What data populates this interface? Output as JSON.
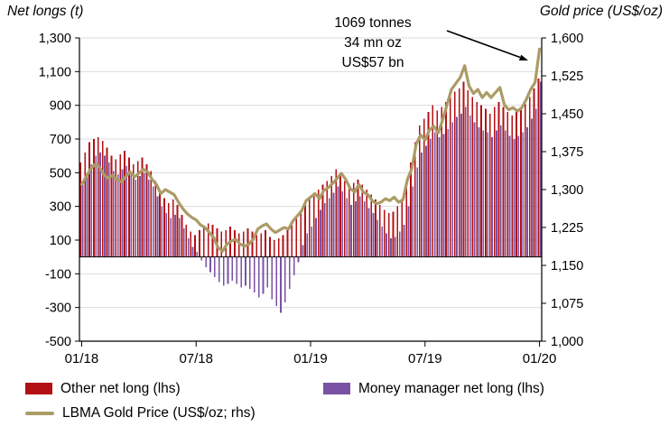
{
  "titles": {
    "left_axis_title": "Net longs (t)",
    "right_axis_title": "Gold price (US$/oz)"
  },
  "annotation": {
    "line1": "1069 tonnes",
    "line2": "34 mn oz",
    "line3": "US$57 bn"
  },
  "legend": [
    {
      "label": "Other net long (lhs)",
      "type": "bar",
      "color": "#b21015"
    },
    {
      "label": "Money manager net long (lhs)",
      "type": "bar",
      "color": "#7a52a3"
    },
    {
      "label": "LBMA Gold Price (US$/oz; rhs)",
      "type": "line",
      "color": "#ab9b66"
    }
  ],
  "chart_data": {
    "type": "bar",
    "subtype": "grouped bars with overlaid line, dual axis, weekly data 01/18 to 01/20",
    "x_tick_labels": [
      "01/18",
      "07/18",
      "01/19",
      "07/19",
      "01/20"
    ],
    "x_tick_indices": [
      0,
      26,
      52,
      78,
      104
    ],
    "left_axis": {
      "title": "Net longs (t)",
      "min": -500,
      "max": 1300,
      "tick_step": 200,
      "ticks": [
        1300,
        1100,
        900,
        700,
        500,
        300,
        100,
        -100,
        -300,
        -500
      ],
      "tick_labels": [
        "1,300",
        "1,100",
        "900",
        "700",
        "500",
        "300",
        "100",
        "-100",
        "-300",
        "-500"
      ]
    },
    "right_axis": {
      "title": "Gold price (US$/oz)",
      "min": 1000,
      "max": 1600,
      "tick_step": 75,
      "ticks": [
        1600,
        1525,
        1450,
        1375,
        1300,
        1225,
        1150,
        1075,
        1000
      ],
      "tick_labels": [
        "1,600",
        "1,525",
        "1,450",
        "1,375",
        "1,300",
        "1,225",
        "1,150",
        "1,075",
        "1,000"
      ]
    },
    "grid": true,
    "legend_position": "bottom",
    "series": [
      {
        "name": "Other net long (lhs)",
        "type": "bar",
        "axis": "left",
        "color": "#b21015",
        "values": [
          560,
          620,
          680,
          700,
          710,
          690,
          650,
          600,
          580,
          610,
          630,
          590,
          550,
          570,
          590,
          550,
          510,
          450,
          390,
          350,
          320,
          340,
          310,
          250,
          190,
          150,
          130,
          160,
          180,
          200,
          190,
          170,
          150,
          160,
          180,
          160,
          140,
          150,
          170,
          150,
          130,
          140,
          160,
          120,
          100,
          110,
          130,
          160,
          200,
          240,
          280,
          320,
          350,
          380,
          400,
          430,
          450,
          480,
          520,
          490,
          450,
          420,
          440,
          460,
          430,
          400,
          370,
          340,
          310,
          280,
          260,
          270,
          300,
          330,
          450,
          560,
          680,
          780,
          820,
          860,
          900,
          870,
          890,
          920,
          950,
          980,
          1000,
          1040,
          990,
          950,
          920,
          900,
          880,
          850,
          890,
          920,
          890,
          860,
          840,
          860,
          880,
          910,
          950,
          1000,
          1060
        ]
      },
      {
        "name": "Money manager net long (lhs)",
        "type": "bar",
        "axis": "left",
        "color": "#7a52a3",
        "values": [
          430,
          490,
          550,
          600,
          620,
          600,
          560,
          510,
          490,
          520,
          540,
          500,
          460,
          480,
          500,
          460,
          420,
          360,
          300,
          260,
          230,
          250,
          230,
          170,
          110,
          60,
          30,
          -20,
          -60,
          -90,
          -120,
          -150,
          -170,
          -160,
          -140,
          -160,
          -180,
          -170,
          -190,
          -210,
          -240,
          -220,
          -180,
          -250,
          -290,
          -330,
          -270,
          -190,
          -110,
          -30,
          70,
          140,
          180,
          230,
          280,
          320,
          350,
          380,
          420,
          390,
          350,
          310,
          330,
          360,
          330,
          290,
          260,
          220,
          180,
          140,
          110,
          120,
          150,
          190,
          300,
          420,
          530,
          620,
          660,
          700,
          740,
          710,
          730,
          760,
          800,
          830,
          850,
          890,
          840,
          800,
          770,
          750,
          740,
          710,
          750,
          780,
          750,
          720,
          700,
          720,
          740,
          770,
          820,
          880,
          1040
        ]
      },
      {
        "name": "LBMA Gold Price (US$/oz; rhs)",
        "type": "line",
        "axis": "right",
        "color": "#ab9b66",
        "values": [
          1310,
          1325,
          1340,
          1350,
          1345,
          1330,
          1322,
          1328,
          1320,
          1315,
          1325,
          1335,
          1325,
          1332,
          1340,
          1335,
          1320,
          1310,
          1292,
          1300,
          1295,
          1290,
          1275,
          1262,
          1252,
          1245,
          1240,
          1230,
          1225,
          1215,
          1205,
          1185,
          1178,
          1192,
          1198,
          1202,
          1192,
          1188,
          1192,
          1202,
          1222,
          1228,
          1232,
          1222,
          1215,
          1220,
          1225,
          1222,
          1238,
          1248,
          1258,
          1278,
          1285,
          1292,
          1282,
          1298,
          1304,
          1312,
          1322,
          1332,
          1320,
          1302,
          1295,
          1310,
          1295,
          1290,
          1278,
          1272,
          1275,
          1282,
          1278,
          1285,
          1275,
          1280,
          1320,
          1342,
          1390,
          1408,
          1398,
          1418,
          1425,
          1412,
          1438,
          1468,
          1498,
          1510,
          1522,
          1545,
          1505,
          1490,
          1498,
          1482,
          1492,
          1482,
          1492,
          1502,
          1468,
          1458,
          1462,
          1455,
          1462,
          1478,
          1498,
          1512,
          1578
        ]
      }
    ]
  }
}
